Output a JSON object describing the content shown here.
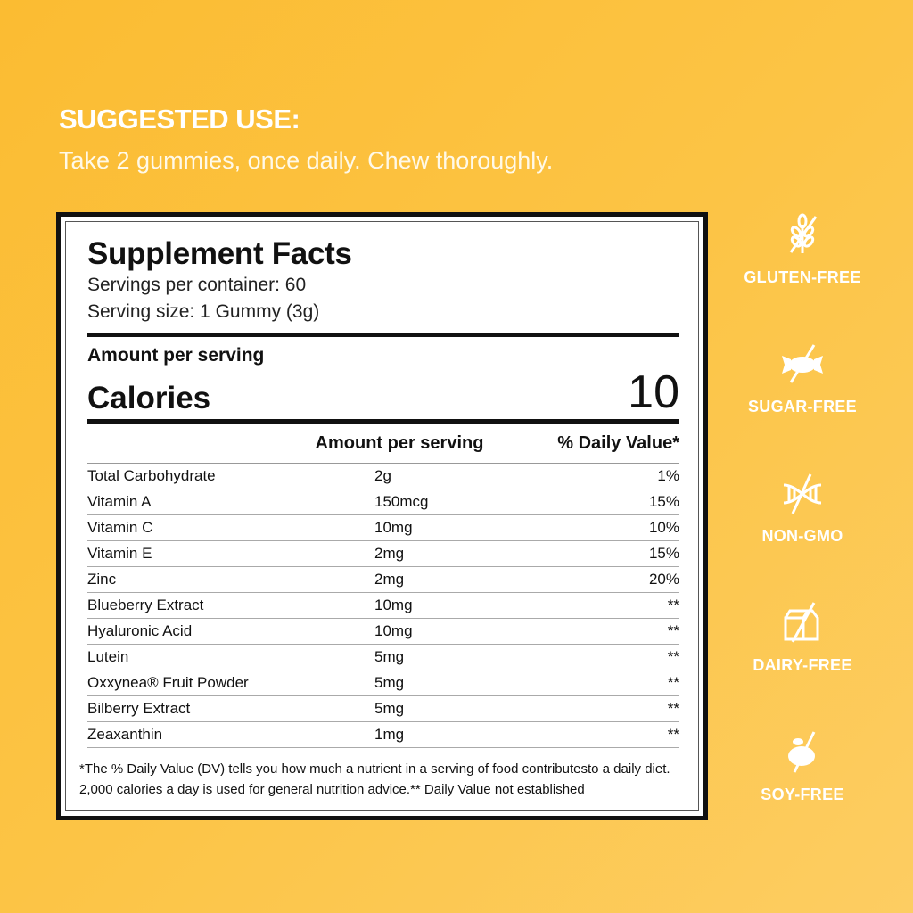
{
  "suggested_use": {
    "title": "SUGGESTED USE:",
    "text": "Take 2 gummies, once daily. Chew thoroughly."
  },
  "facts": {
    "title": "Supplement Facts",
    "servings_per_container": "Servings per container: 60",
    "serving_size": "Serving size: 1 Gummy (3g)",
    "amount_per_serving": "Amount per serving",
    "calories_label": "Calories",
    "calories_value": "10",
    "columns": [
      "Amount per serving",
      "% Daily Value*"
    ],
    "rows": [
      {
        "name": "Total Carbohydrate",
        "amount": "2g",
        "dv": "1%"
      },
      {
        "name": "Vitamin A",
        "amount": "150mcg",
        "dv": "15%"
      },
      {
        "name": "Vitamin C",
        "amount": "10mg",
        "dv": "10%"
      },
      {
        "name": "Vitamin E",
        "amount": "2mg",
        "dv": "15%"
      },
      {
        "name": "Zinc",
        "amount": "2mg",
        "dv": "20%"
      },
      {
        "name": "Blueberry Extract",
        "amount": "10mg",
        "dv": "**"
      },
      {
        "name": "Hyaluronic Acid",
        "amount": "10mg",
        "dv": "**"
      },
      {
        "name": "Lutein",
        "amount": "5mg",
        "dv": "**"
      },
      {
        "name": "Oxxynea® Fruit Powder",
        "amount": "5mg",
        "dv": "**"
      },
      {
        "name": "Bilberry Extract",
        "amount": "5mg",
        "dv": "**"
      },
      {
        "name": "Zeaxanthin",
        "amount": "1mg",
        "dv": "**"
      }
    ],
    "footnote_1": "*The % Daily Value (DV) tells you how much a nutrient in a serving of food contributesto a daily diet.",
    "footnote_2": "2,000 calories a day is used for general nutrition advice.** Daily Value not established"
  },
  "badges": [
    {
      "icon": "wheat-crossed-icon",
      "label": "GLUTEN-FREE"
    },
    {
      "icon": "candy-crossed-icon",
      "label": "SUGAR-FREE"
    },
    {
      "icon": "dna-crossed-icon",
      "label": "NON-GMO"
    },
    {
      "icon": "milk-carton-crossed-icon",
      "label": "DAIRY-FREE"
    },
    {
      "icon": "soybean-crossed-icon",
      "label": "SOY-FREE"
    }
  ],
  "colors": {
    "background": "#fcc445",
    "panel_border": "#111111",
    "text_light": "#ffffff"
  }
}
